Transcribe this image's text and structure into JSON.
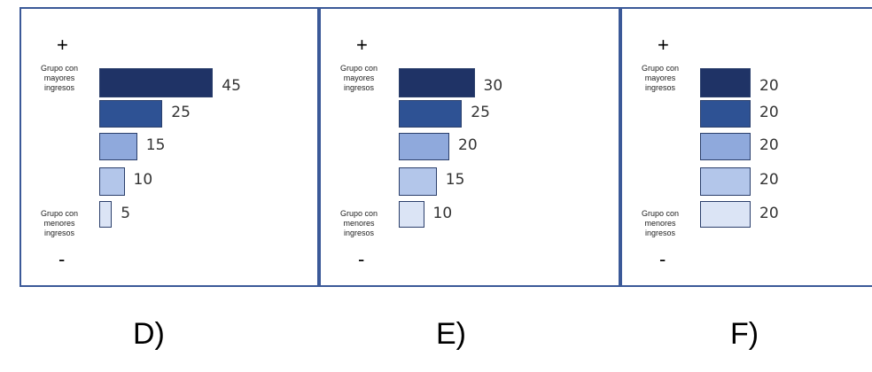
{
  "panels": [
    {
      "plus": "+",
      "minus": "-",
      "top_label": "Grupo con mayores ingresos",
      "bottom_label": "Grupo con menores ingresos",
      "label": "D)",
      "chart_data": {
        "type": "bar",
        "orientation": "horizontal",
        "categories": [
          "Grupo con mayores ingresos",
          "",
          "",
          "",
          "Grupo con menores ingresos"
        ],
        "values": [
          45,
          25,
          15,
          10,
          5
        ],
        "colors": [
          "#1f3366",
          "#2e5294",
          "#8fa9dc",
          "#b3c6ea",
          "#dbe4f5"
        ]
      }
    },
    {
      "plus": "+",
      "minus": "-",
      "top_label": "Grupo con mayores ingresos",
      "bottom_label": "Grupo con menores ingresos",
      "label": "E)",
      "chart_data": {
        "type": "bar",
        "orientation": "horizontal",
        "categories": [
          "Grupo con mayores ingresos",
          "",
          "",
          "",
          "Grupo con menores ingresos"
        ],
        "values": [
          30,
          25,
          20,
          15,
          10
        ],
        "colors": [
          "#1f3366",
          "#2e5294",
          "#8fa9dc",
          "#b3c6ea",
          "#dbe4f5"
        ]
      }
    },
    {
      "plus": "+",
      "minus": "-",
      "top_label": "Grupo con mayores ingresos",
      "bottom_label": "Grupo con menores ingresos",
      "label": "F)",
      "chart_data": {
        "type": "bar",
        "orientation": "horizontal",
        "categories": [
          "Grupo con mayores ingresos",
          "",
          "",
          "",
          "Grupo con menores ingresos"
        ],
        "values": [
          20,
          20,
          20,
          20,
          20
        ],
        "colors": [
          "#1f3366",
          "#2e5294",
          "#8fa9dc",
          "#b3c6ea",
          "#dbe4f5"
        ]
      }
    }
  ]
}
